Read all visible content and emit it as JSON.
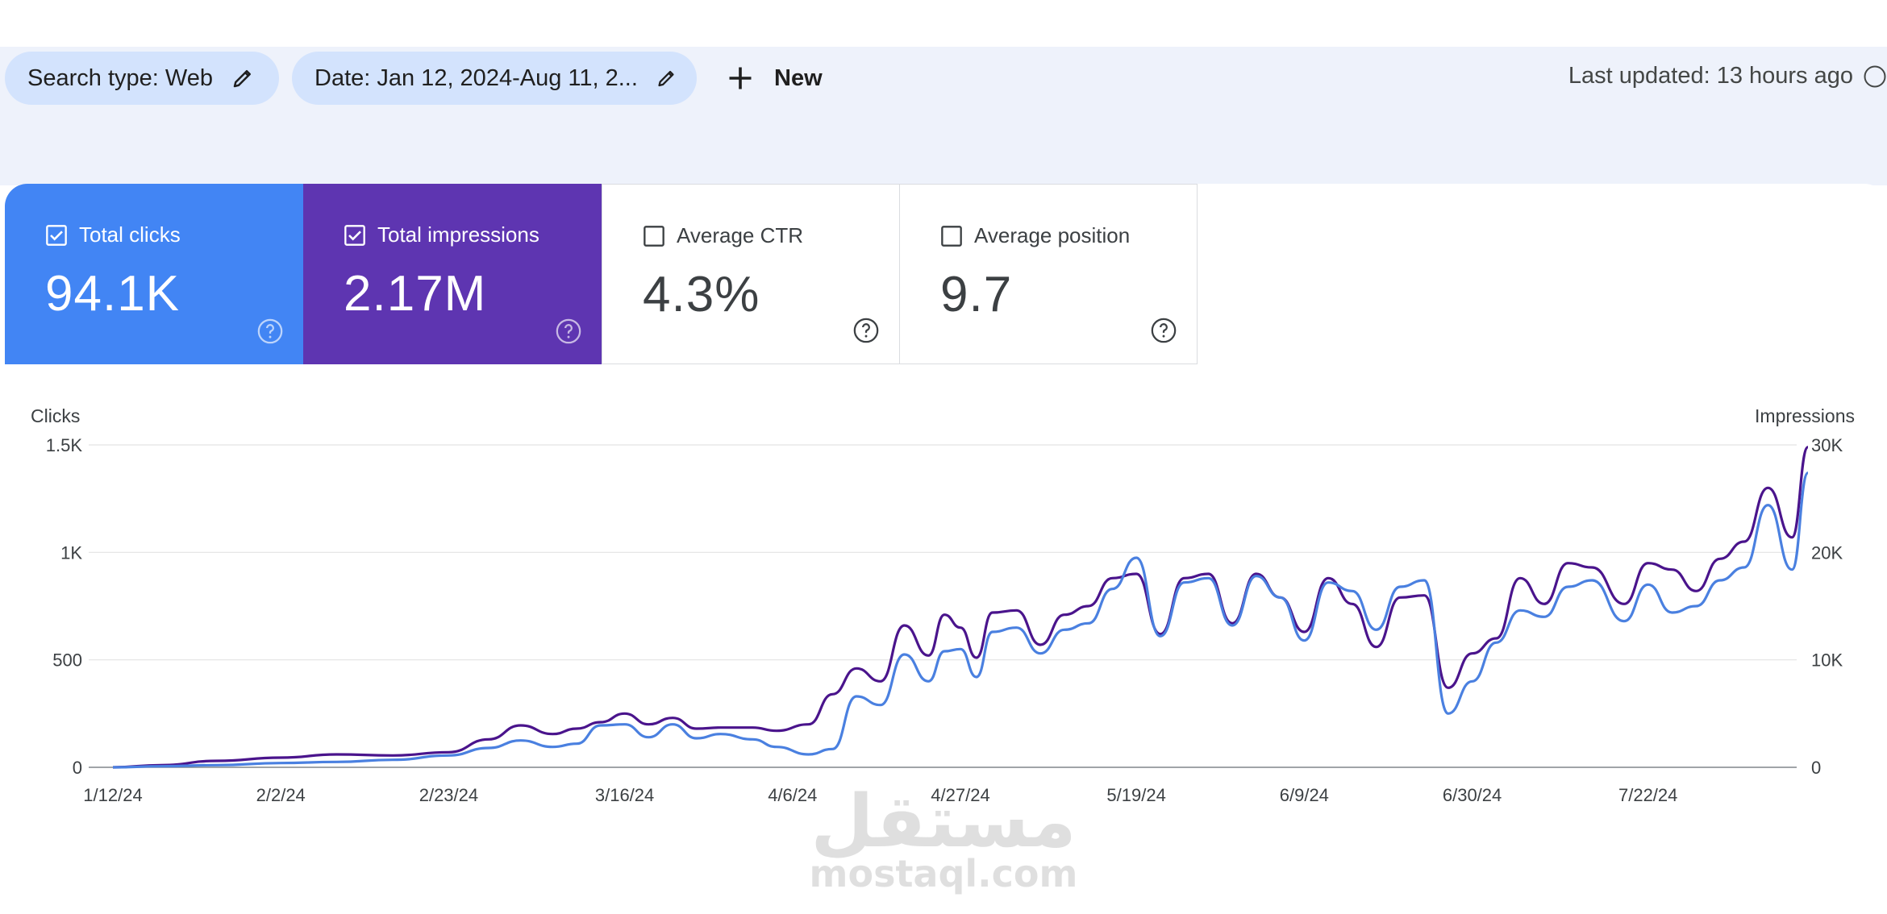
{
  "filters": {
    "search_type": "Search type: Web",
    "date": "Date: Jan 12, 2024-Aug 11, 2...",
    "new_label": "New"
  },
  "last_updated": "Last updated: 13 hours ago",
  "metrics": [
    {
      "label": "Total clicks",
      "value": "94.1K",
      "checked": true,
      "color": "#4285f4"
    },
    {
      "label": "Total impressions",
      "value": "2.17M",
      "checked": true,
      "color": "#5e35b1"
    },
    {
      "label": "Average CTR",
      "value": "4.3%",
      "checked": false
    },
    {
      "label": "Average position",
      "value": "9.7",
      "checked": false
    }
  ],
  "watermark": {
    "arabic": "مستقل",
    "latin": "mostaql.com"
  },
  "chart_data": {
    "type": "line",
    "xlabel": "",
    "y_left_label": "Clicks",
    "y_right_label": "Impressions",
    "y_left_ticks": [
      "0",
      "500",
      "1K",
      "1.5K"
    ],
    "y_right_ticks": [
      "0",
      "10K",
      "20K",
      "30K"
    ],
    "y_left_lim": [
      0,
      1500
    ],
    "y_right_lim": [
      0,
      30000
    ],
    "x_start": "2024-01-12",
    "x_end": "2024-08-11",
    "x_tick_labels": [
      "1/12/24",
      "2/2/24",
      "2/23/24",
      "3/16/24",
      "4/6/24",
      "4/27/24",
      "5/19/24",
      "6/9/24",
      "6/30/24",
      "7/22/24"
    ],
    "grid": true,
    "series": [
      {
        "name": "Clicks",
        "axis": "left",
        "color": "#4a80e0",
        "x": [
          "1/12/24",
          "1/18/24",
          "1/25/24",
          "2/2/24",
          "2/9/24",
          "2/16/24",
          "2/23/24",
          "2/28/24",
          "3/3/24",
          "3/7/24",
          "3/10/24",
          "3/13/24",
          "3/16/24",
          "3/19/24",
          "3/22/24",
          "3/25/24",
          "3/28/24",
          "4/1/24",
          "4/4/24",
          "4/8/24",
          "4/11/24",
          "4/14/24",
          "4/17/24",
          "4/20/24",
          "4/23/24",
          "4/25/24",
          "4/27/24",
          "4/29/24",
          "5/1/24",
          "5/4/24",
          "5/7/24",
          "5/10/24",
          "5/13/24",
          "5/16/24",
          "5/19/24",
          "5/22/24",
          "5/25/24",
          "5/28/24",
          "5/31/24",
          "6/3/24",
          "6/6/24",
          "6/9/24",
          "6/12/24",
          "6/15/24",
          "6/18/24",
          "6/21/24",
          "6/24/24",
          "6/27/24",
          "6/30/24",
          "7/3/24",
          "7/6/24",
          "7/9/24",
          "7/12/24",
          "7/15/24",
          "7/19/24",
          "7/22/24",
          "7/25/24",
          "7/28/24",
          "7/31/24",
          "8/3/24",
          "8/6/24",
          "8/9/24",
          "8/11/24"
        ],
        "y": [
          0,
          5,
          10,
          20,
          25,
          35,
          55,
          90,
          125,
          95,
          110,
          195,
          200,
          140,
          200,
          135,
          155,
          130,
          95,
          60,
          85,
          330,
          290,
          525,
          400,
          540,
          550,
          420,
          630,
          650,
          530,
          640,
          670,
          830,
          975,
          610,
          860,
          880,
          660,
          890,
          790,
          590,
          860,
          820,
          640,
          840,
          870,
          250,
          400,
          580,
          730,
          700,
          840,
          870,
          680,
          850,
          720,
          750,
          870,
          930,
          1220,
          920,
          1370
        ]
      },
      {
        "name": "Impressions",
        "axis": "right",
        "color": "#4a148c",
        "x": [
          "1/12/24",
          "1/18/24",
          "1/25/24",
          "2/2/24",
          "2/9/24",
          "2/16/24",
          "2/23/24",
          "2/28/24",
          "3/3/24",
          "3/7/24",
          "3/10/24",
          "3/13/24",
          "3/16/24",
          "3/19/24",
          "3/22/24",
          "3/25/24",
          "3/28/24",
          "4/1/24",
          "4/4/24",
          "4/8/24",
          "4/11/24",
          "4/14/24",
          "4/17/24",
          "4/20/24",
          "4/23/24",
          "4/25/24",
          "4/27/24",
          "4/29/24",
          "5/1/24",
          "5/4/24",
          "5/7/24",
          "5/10/24",
          "5/13/24",
          "5/16/24",
          "5/19/24",
          "5/22/24",
          "5/25/24",
          "5/28/24",
          "5/31/24",
          "6/3/24",
          "6/6/24",
          "6/9/24",
          "6/12/24",
          "6/15/24",
          "6/18/24",
          "6/21/24",
          "6/24/24",
          "6/27/24",
          "6/30/24",
          "7/3/24",
          "7/6/24",
          "7/9/24",
          "7/12/24",
          "7/15/24",
          "7/19/24",
          "7/22/24",
          "7/25/24",
          "7/28/24",
          "7/31/24",
          "8/3/24",
          "8/6/24",
          "8/9/24",
          "8/11/24"
        ],
        "y": [
          0,
          200,
          600,
          900,
          1200,
          1100,
          1400,
          2600,
          3900,
          3100,
          3600,
          4200,
          5000,
          4000,
          4600,
          3600,
          3700,
          3700,
          3400,
          4000,
          6800,
          9200,
          8000,
          13200,
          10400,
          14200,
          13000,
          10200,
          14400,
          14600,
          11400,
          14200,
          15000,
          17600,
          18000,
          12400,
          17600,
          18000,
          13400,
          18000,
          15800,
          12600,
          17600,
          15200,
          11200,
          15800,
          16000,
          7400,
          10600,
          12000,
          17600,
          15200,
          19000,
          18600,
          15200,
          19000,
          18400,
          16400,
          19400,
          21000,
          26000,
          21400,
          29800
        ]
      }
    ]
  }
}
